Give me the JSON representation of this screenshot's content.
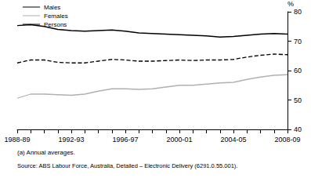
{
  "chart_data": {
    "type": "line",
    "ylabel": "%",
    "categories": [
      "1988-89",
      null,
      null,
      null,
      "1992-93",
      null,
      null,
      null,
      "1996-97",
      null,
      null,
      null,
      "2000-01",
      null,
      null,
      null,
      "2004-05",
      null,
      null,
      null,
      "2008-09"
    ],
    "series": [
      {
        "name": "Males",
        "color": "#000000",
        "line_style": "solid",
        "values": [
          75.3,
          75.6,
          75.0,
          74.0,
          73.6,
          73.4,
          73.6,
          73.8,
          73.4,
          72.8,
          72.6,
          72.4,
          72.2,
          72.0,
          71.8,
          71.4,
          71.6,
          72.0,
          72.4,
          72.6,
          72.4
        ]
      },
      {
        "name": "Females",
        "color": "#b0b0b0",
        "line_style": "solid",
        "values": [
          50.6,
          52.0,
          52.0,
          51.8,
          51.6,
          52.0,
          53.0,
          53.8,
          53.8,
          53.6,
          53.8,
          54.4,
          55.0,
          55.0,
          55.4,
          55.8,
          56.0,
          57.0,
          57.8,
          58.4,
          58.6
        ]
      },
      {
        "name": "Persons",
        "color": "#000000",
        "line_style": "dashed",
        "values": [
          62.6,
          63.6,
          63.6,
          62.8,
          62.6,
          62.6,
          63.2,
          63.8,
          63.6,
          63.2,
          63.2,
          63.4,
          63.6,
          63.4,
          63.6,
          63.6,
          63.8,
          64.6,
          65.2,
          65.6,
          65.4
        ]
      }
    ],
    "ylim": [
      40,
      80
    ],
    "yticks": [
      40,
      50,
      60,
      70,
      80
    ],
    "grid": false,
    "legend": "top-left",
    "annotations": [
      "(a) Annual averages.",
      "Source: ABS Labour Force, Australia, Detailed – Electronic Delivery (6291.0.55.001)."
    ]
  }
}
